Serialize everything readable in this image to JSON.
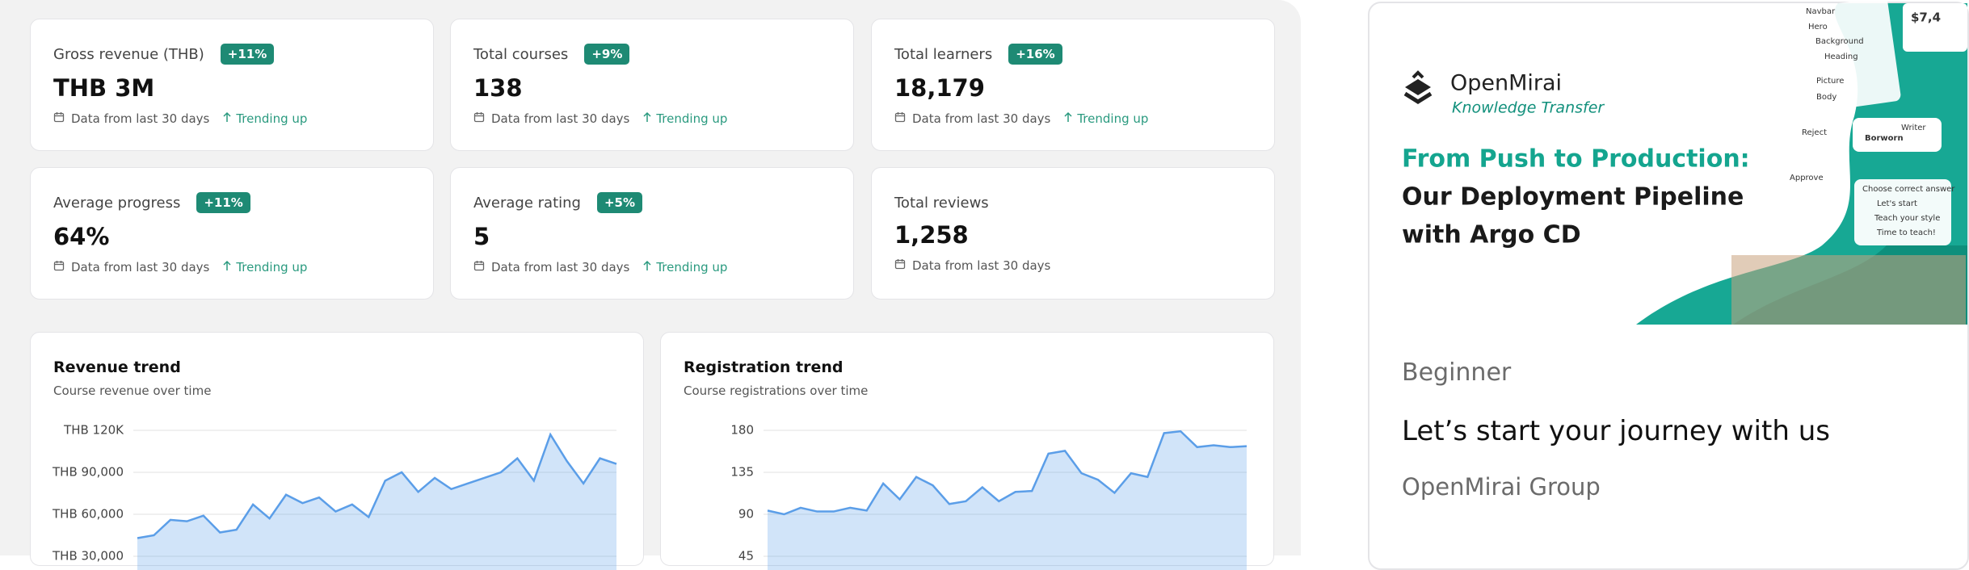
{
  "stats": [
    {
      "label": "Gross revenue (THB)",
      "badge": "+11%",
      "value": "THB 3M",
      "note": "Data from last 30 days",
      "trend": "Trending up"
    },
    {
      "label": "Total courses",
      "badge": "+9%",
      "value": "138",
      "note": "Data from last 30 days",
      "trend": "Trending up"
    },
    {
      "label": "Total learners",
      "badge": "+16%",
      "value": "18,179",
      "note": "Data from last 30 days",
      "trend": "Trending up"
    },
    {
      "label": "Average progress",
      "badge": "+11%",
      "value": "64%",
      "note": "Data from last 30 days",
      "trend": "Trending up"
    },
    {
      "label": "Average rating",
      "badge": "+5%",
      "value": "5",
      "note": "Data from last 30 days",
      "trend": "Trending up"
    },
    {
      "label": "Total reviews",
      "value": "1,258",
      "note": "Data from last 30 days"
    }
  ],
  "chart_data": [
    {
      "type": "area",
      "title": "Revenue trend",
      "subtitle": "Course revenue over time",
      "color": "#5b9ee8",
      "ylim": [
        0,
        120000
      ],
      "yticks": [
        {
          "value": 30000,
          "label": "THB 30,000"
        },
        {
          "value": 60000,
          "label": "THB 60,000"
        },
        {
          "value": 90000,
          "label": "THB 90,000"
        },
        {
          "value": 120000,
          "label": "THB 120K"
        }
      ],
      "values": [
        43000,
        45000,
        56000,
        55000,
        59000,
        47000,
        49000,
        67000,
        57000,
        74000,
        68000,
        72000,
        62000,
        67000,
        58000,
        84000,
        90000,
        76000,
        86000,
        78000,
        82000,
        86000,
        90000,
        100000,
        84000,
        117000,
        98000,
        82000,
        100000,
        96000
      ]
    },
    {
      "type": "area",
      "title": "Registration trend",
      "subtitle": "Course registrations over time",
      "color": "#5b9ee8",
      "ylim": [
        0,
        180
      ],
      "yticks": [
        45,
        90,
        135,
        180
      ],
      "values": [
        94,
        90,
        97,
        93,
        93,
        97,
        94,
        123,
        106,
        130,
        121,
        101,
        104,
        119,
        104,
        114,
        115,
        155,
        158,
        134,
        127,
        113,
        134,
        130,
        177,
        179,
        162,
        164,
        162,
        163
      ]
    }
  ],
  "course": {
    "banner": {
      "brand": "OpenMirai",
      "tagline": "Knowledge Transfer",
      "headline": [
        "From Push to Production:",
        "Our Deployment Pipeline",
        "with Argo CD"
      ],
      "mockup": [
        "Navbar",
        "Hero",
        "Background",
        "Heading",
        "Picture",
        "Body",
        "Reject",
        "Approve",
        "Writer",
        "Borworn",
        "$7,4",
        "Choose correct answer",
        "Let's start",
        "Teach your style",
        "Time to teach!"
      ]
    },
    "level": "Beginner",
    "title": "Let’s start your journey with us",
    "author": "OpenMirai Group"
  }
}
